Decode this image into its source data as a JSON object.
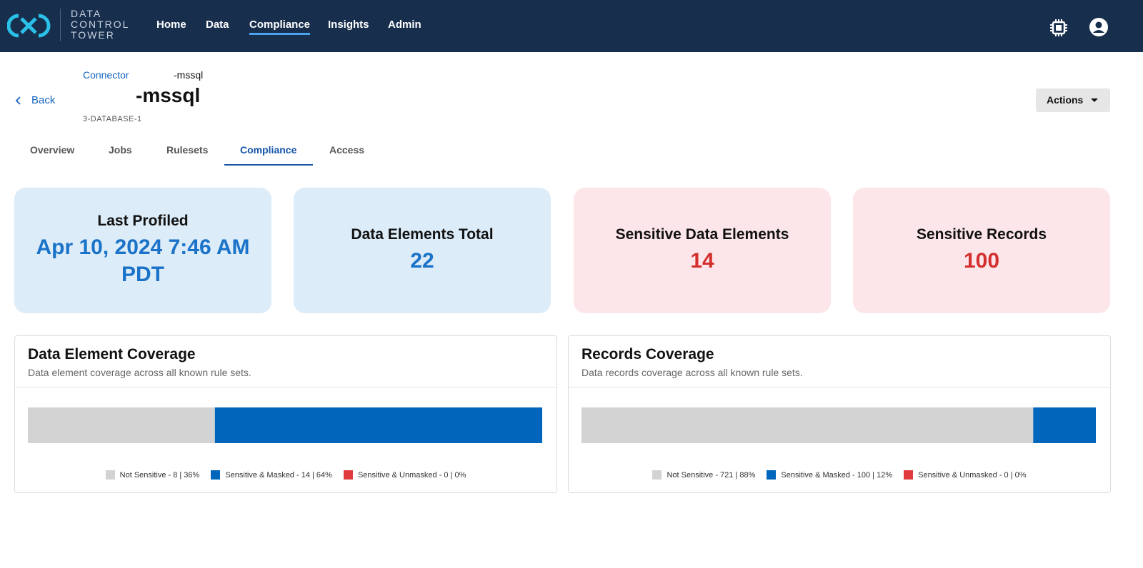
{
  "header": {
    "brand": [
      "DATA",
      "CONTROL",
      "TOWER"
    ],
    "nav": [
      "Home",
      "Data",
      "Compliance",
      "Insights",
      "Admin"
    ]
  },
  "page": {
    "breadcrumb": "Connector",
    "breadcrumb_name": "-mssql",
    "title": "-mssql",
    "subtitle": "3-DATABASE-1",
    "back": "Back",
    "actions": "Actions"
  },
  "tabs": [
    "Overview",
    "Jobs",
    "Rulesets",
    "Compliance",
    "Access"
  ],
  "cards": [
    {
      "label": "Last Profiled",
      "value": "Apr 10, 2024 7:46 AM PDT",
      "color": "#dcecf8",
      "value_color": "#1a73c8"
    },
    {
      "label": "Data Elements Total",
      "value": 22,
      "color": "#dcecf8",
      "value_color": "#1a73c8"
    },
    {
      "label": "Sensitive Data Elements",
      "value": 14,
      "color": "#fde6ea",
      "value_color": "#d32f2f"
    },
    {
      "label": "Sensitive Records",
      "value": 100,
      "color": "#fde6ea",
      "value_color": "#d32f2f"
    }
  ],
  "coverage": [
    {
      "title": "Data Element Coverage",
      "subtitle": "Data element coverage across all known rule sets.",
      "segments": [
        {
          "label": "Not Sensitive - 8 | 36%",
          "value": 8,
          "color": "#d3d3d3"
        },
        {
          "label": "Sensitive & Masked - 14 | 64%",
          "value": 14,
          "color": "#0066bb"
        },
        {
          "label": "Sensitive & Unmasked - 0 | 0%",
          "value": 0,
          "color": "#e03a3e"
        }
      ]
    },
    {
      "title": "Records Coverage",
      "subtitle": "Data records coverage across all known rule sets.",
      "segments": [
        {
          "label": "Not Sensitive - 721 | 88%",
          "value": 721,
          "color": "#d3d3d3"
        },
        {
          "label": "Sensitive & Masked - 100 | 12%",
          "value": 100,
          "color": "#0066bb"
        },
        {
          "label": "Sensitive & Unmasked - 0 | 0%",
          "value": 0,
          "color": "#e03a3e"
        }
      ]
    }
  ]
}
